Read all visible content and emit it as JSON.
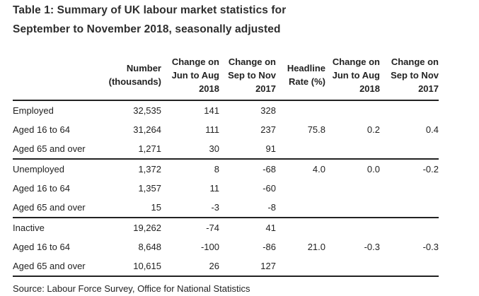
{
  "chart_data": {
    "type": "table",
    "title": "Table 1: Summary of UK labour market statistics for\nSeptember to November 2018, seasonally adjusted",
    "headers": [
      "",
      "Number\n(thousands)",
      "Change on\nJun to Aug\n2018",
      "Change on\nSep to Nov\n2017",
      "Headline\nRate (%)",
      "Change on\nJun to Aug\n2018",
      "Change on\nSep to Nov\n2017"
    ],
    "rows": [
      {
        "cells": [
          "Employed",
          "32,535",
          "141",
          "328",
          "",
          "",
          ""
        ]
      },
      {
        "cells": [
          "Aged 16 to 64",
          "31,264",
          "111",
          "237",
          "75.8",
          "0.2",
          "0.4"
        ]
      },
      {
        "cells": [
          "Aged 65 and over",
          "1,271",
          "30",
          "91",
          "",
          "",
          ""
        ]
      },
      {
        "cells": [
          "Unemployed",
          "1,372",
          "8",
          "-68",
          "4.0",
          "0.0",
          "-0.2"
        ]
      },
      {
        "cells": [
          "Aged 16 to 64",
          "1,357",
          "11",
          "-60",
          "",
          "",
          ""
        ]
      },
      {
        "cells": [
          "Aged 65 and over",
          "15",
          "-3",
          "-8",
          "",
          "",
          ""
        ]
      },
      {
        "cells": [
          "Inactive",
          "19,262",
          "-74",
          "41",
          "",
          "",
          ""
        ]
      },
      {
        "cells": [
          "Aged 16 to 64",
          "8,648",
          "-100",
          "-86",
          "21.0",
          "-0.3",
          "-0.3"
        ]
      },
      {
        "cells": [
          "Aged 65 and over",
          "10,615",
          "26",
          "127",
          "",
          "",
          ""
        ]
      }
    ],
    "source": "Source: Labour Force Survey, Office for National Statistics",
    "colors": {
      "text": "#222222",
      "rule": "#222222",
      "background": "#ffffff"
    }
  }
}
